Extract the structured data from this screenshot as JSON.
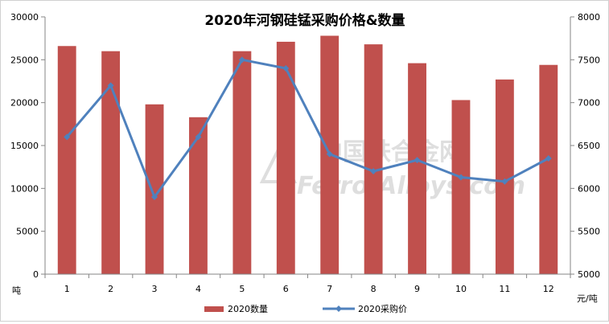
{
  "chart_data": {
    "type": "bar",
    "title": "2020年河钢硅锰采购价格&数量",
    "categories": [
      "1",
      "2",
      "3",
      "4",
      "5",
      "6",
      "7",
      "8",
      "9",
      "10",
      "11",
      "12"
    ],
    "series": [
      {
        "name": "2020数量",
        "type": "bar",
        "axis": "left",
        "color": "#c0504d",
        "values": [
          26600,
          26000,
          19800,
          18300,
          26000,
          27100,
          27800,
          26800,
          24600,
          20300,
          22700,
          24400
        ]
      },
      {
        "name": "2020采购价",
        "type": "line",
        "axis": "right",
        "color": "#4f81bd",
        "values": [
          6600,
          7200,
          5900,
          6600,
          7500,
          7400,
          6400,
          6200,
          6330,
          6130,
          6080,
          6350
        ]
      }
    ],
    "y_left": {
      "unit_label": "吨",
      "range": [
        0,
        30000
      ],
      "ticks": [
        0,
        5000,
        10000,
        15000,
        20000,
        25000,
        30000
      ]
    },
    "y_right": {
      "unit_label": "元/吨",
      "range": [
        5000,
        8000
      ],
      "ticks": [
        5000,
        5500,
        6000,
        6500,
        7000,
        7500,
        8000
      ]
    },
    "grid": false,
    "legend_position": "bottom",
    "watermark": {
      "cn": "中国铁合金网",
      "en": "Ferro-Alloys.com"
    }
  }
}
